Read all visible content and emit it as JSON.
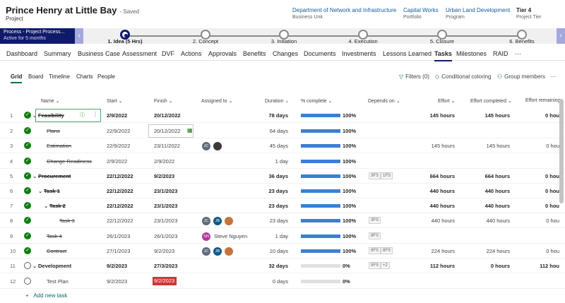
{
  "header": {
    "title": "Prince Henry at Little Bay",
    "saved": "- Saved",
    "entity": "Project",
    "fields": [
      {
        "value": "Department of Network and Infrastructure",
        "label": "Business Unit"
      },
      {
        "value": "Capital Works",
        "label": "Portfolio"
      },
      {
        "value": "Urban Land Development",
        "label": "Program"
      },
      {
        "value": "Tier 4",
        "label": "Project Tier"
      }
    ]
  },
  "bpf": {
    "active_name": "Process - Project Process...",
    "active_duration": "Active for 5 months",
    "stages": [
      "1. Idea  (5 Hrs)",
      "2. Concept",
      "3. Initiation",
      "4. Execution",
      "5. Closure",
      "6. Benefits"
    ],
    "prev_icon": "chevron-left-icon",
    "next_icon": "chevron-right-icon"
  },
  "tabs": [
    "Dashboard",
    "Summary",
    "Business Case",
    "Assessment",
    "DVF",
    "Actions",
    "Approvals",
    "Benefits",
    "Changes",
    "Documents",
    "Investments",
    "Lessons Learned",
    "Tasks",
    "Milestones",
    "RAID",
    "···"
  ],
  "views": [
    "Grid",
    "Board",
    "Timeline",
    "Charts",
    "People"
  ],
  "toolbar": {
    "filters": "Filters (0)",
    "conditional": "Conditional coloring",
    "group": "Group members",
    "more": "···"
  },
  "columns": {
    "name": "Name",
    "start": "Start",
    "finish": "Finish",
    "assigned": "Assigned to",
    "duration": "Duration",
    "pct": "% complete",
    "depends": "Depends on",
    "effort": "Effort",
    "effort_completed": "Effort completed",
    "effort_remaining": "Effort remaining"
  },
  "rows": [
    {
      "n": "1",
      "name": "Feasibility",
      "start": "2/9/2022",
      "finish": "20/12/2022",
      "duration": "78 days",
      "pct": 100,
      "pct_label": "100%",
      "deps": [],
      "effort": "145 hours",
      "done": "145 hours",
      "remain": "0 hou"
    },
    {
      "n": "2",
      "name": "Plans",
      "start": "22/9/2022",
      "finish": "20/12/2022",
      "duration": "64 days",
      "pct": 100,
      "pct_label": "100%",
      "deps": [],
      "effort": "",
      "done": "",
      "remain": ""
    },
    {
      "n": "3",
      "name": "Estimation",
      "start": "22/9/2022",
      "finish": "23/11/2022",
      "duration": "45 days",
      "pct": 100,
      "pct_label": "100%",
      "deps": [],
      "effort": "145 hours",
      "done": "145 hours",
      "remain": "0 hou",
      "avatars": [
        {
          "t": "JC",
          "c": "#5f6b7a"
        },
        {
          "t": "",
          "c": "#3b3b3b"
        }
      ]
    },
    {
      "n": "4",
      "name": "Change Readiness",
      "start": "2/9/2022",
      "finish": "2/9/2022",
      "duration": "1 day",
      "pct": 100,
      "pct_label": "100%",
      "deps": [],
      "effort": "",
      "done": "",
      "remain": ""
    },
    {
      "n": "5",
      "name": "Procurement",
      "start": "22/12/2022",
      "finish": "9/2/2023",
      "duration": "36 days",
      "pct": 100,
      "pct_label": "100%",
      "deps": [
        "3FS",
        "1FS"
      ],
      "effort": "664 hours",
      "done": "664 hours",
      "remain": "0 hou"
    },
    {
      "n": "6",
      "name": "Task 1",
      "start": "22/12/2022",
      "finish": "23/1/2023",
      "duration": "23 days",
      "pct": 100,
      "pct_label": "100%",
      "deps": [],
      "effort": "440 hours",
      "done": "440 hours",
      "remain": "0 hou"
    },
    {
      "n": "7",
      "name": "Task 2",
      "start": "22/12/2022",
      "finish": "23/1/2023",
      "duration": "23 days",
      "pct": 100,
      "pct_label": "100%",
      "deps": [],
      "effort": "440 hours",
      "done": "440 hours",
      "remain": "0 hou"
    },
    {
      "n": "8",
      "name": "Task 3",
      "start": "22/12/2022",
      "finish": "23/1/2023",
      "duration": "23 days",
      "pct": 100,
      "pct_label": "100%",
      "deps": [
        "3FS"
      ],
      "effort": "440 hours",
      "done": "440 hours",
      "remain": "0 hou",
      "avatars": [
        {
          "t": "JC",
          "c": "#5f6b7a"
        },
        {
          "t": "JB",
          "c": "#0e5a8a"
        },
        {
          "t": "",
          "c": "#c8733a"
        }
      ]
    },
    {
      "n": "9",
      "name": "Task 4",
      "start": "26/1/2023",
      "finish": "26/1/2023",
      "duration": "1 day",
      "pct": 100,
      "pct_label": "100%",
      "deps": [
        "8FS"
      ],
      "effort": "",
      "done": "",
      "remain": "",
      "avatars": [
        {
          "t": "SN",
          "c": "#b4379b"
        }
      ],
      "assignee": "Steve Nguyen"
    },
    {
      "n": "10",
      "name": "Contract",
      "start": "27/1/2023",
      "finish": "9/2/2023",
      "duration": "10 days",
      "pct": 100,
      "pct_label": "100%",
      "deps": [
        "9FS",
        "8FS"
      ],
      "effort": "224 hours",
      "done": "224 hours",
      "remain": "0 hou",
      "avatars": [
        {
          "t": "JC",
          "c": "#5f6b7a"
        },
        {
          "t": "JB",
          "c": "#0e5a8a"
        },
        {
          "t": "",
          "c": "#c8733a"
        }
      ]
    },
    {
      "n": "11",
      "name": "Development",
      "start": "9/2/2023",
      "finish": "27/3/2023",
      "duration": "32 days",
      "pct": 0,
      "pct_label": "0%",
      "deps": [
        "5FS",
        "+2"
      ],
      "effort": "112 hours",
      "done": "0 hours",
      "remain": "112 hou"
    },
    {
      "n": "12",
      "name": "Test Plan",
      "start": "9/2/2023",
      "finish": "9/2/2023",
      "duration": "0 days",
      "pct": 0,
      "pct_label": "0%",
      "deps": [],
      "effort": "",
      "done": "",
      "remain": ""
    }
  ],
  "add_task": "Add new task"
}
